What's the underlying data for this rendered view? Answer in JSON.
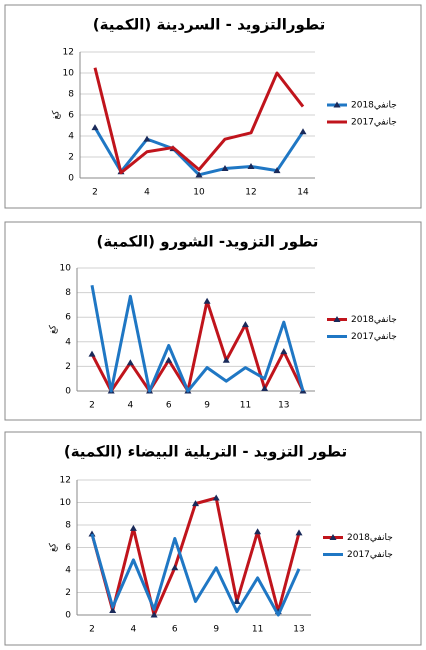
{
  "chart_data": [
    {
      "type": "line",
      "title": "تطورالتزويد - السردينة (الكمية)",
      "y_label": "كغ",
      "categories": [
        "2",
        null,
        "4",
        null,
        "10",
        null,
        "12",
        null,
        "14"
      ],
      "ylim": [
        0,
        12
      ],
      "yticks": [
        0,
        2,
        4,
        6,
        8,
        10,
        12
      ],
      "grid": true,
      "legend": "right",
      "series": [
        {
          "name": "جانفي2018",
          "color": "#1f77c4",
          "marker": "triangle",
          "values": [
            4.8,
            0.6,
            3.7,
            2.8,
            0.3,
            0.9,
            1.1,
            0.7,
            4.4
          ]
        },
        {
          "name": "جانفي2017",
          "color": "#c0141c",
          "marker": "none",
          "values": [
            10.5,
            0.5,
            2.5,
            2.9,
            0.8,
            3.7,
            4.3,
            10,
            6.8
          ]
        }
      ]
    },
    {
      "type": "line",
      "title": "تطور التزويد- الشورو (الكمية)",
      "y_label": "كغ",
      "categories": [
        "2",
        null,
        "4",
        null,
        "6",
        null,
        "9",
        null,
        "11",
        null,
        "13",
        null
      ],
      "ylim": [
        0,
        10
      ],
      "yticks": [
        0,
        2,
        4,
        6,
        8,
        10
      ],
      "grid": true,
      "legend": "right",
      "series": [
        {
          "name": "جانفي2018",
          "color": "#c0141c",
          "marker": "triangle",
          "values": [
            3,
            0,
            2.3,
            0,
            2.5,
            0,
            7.3,
            2.5,
            5.4,
            0.2,
            3.2,
            0
          ]
        },
        {
          "name": "جانفي2017",
          "color": "#1f77c4",
          "marker": "none",
          "values": [
            8.6,
            0,
            7.7,
            0,
            3.7,
            0,
            1.9,
            0.8,
            1.9,
            1.0,
            5.6,
            0
          ]
        }
      ]
    },
    {
      "type": "line",
      "title": "تطور التزويد - التريلية البيضاء (الكمية)",
      "y_label": "كغ",
      "categories": [
        "2",
        null,
        "4",
        null,
        "6",
        null,
        "9",
        null,
        "11",
        null,
        "13"
      ],
      "ylim": [
        0,
        12
      ],
      "yticks": [
        0,
        2,
        4,
        6,
        8,
        10,
        12
      ],
      "grid": true,
      "legend": "right",
      "series": [
        {
          "name": "جانفي2018",
          "color": "#c0141c",
          "marker": "triangle",
          "values": [
            7.2,
            0.4,
            7.7,
            0,
            4.2,
            9.9,
            10.4,
            1.2,
            7.4,
            0.3,
            7.3
          ]
        },
        {
          "name": "جانفي2017",
          "color": "#1f77c4",
          "marker": "none",
          "values": [
            7.2,
            0.7,
            4.9,
            0.5,
            6.8,
            1.2,
            4.2,
            0.3,
            3.3,
            0,
            4.1
          ]
        }
      ]
    }
  ]
}
